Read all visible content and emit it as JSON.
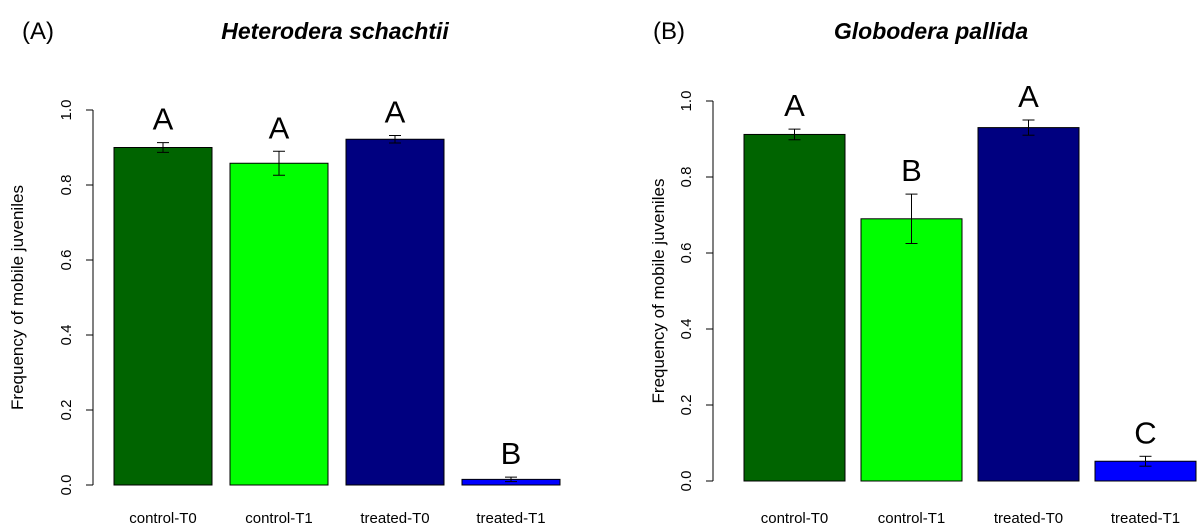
{
  "chart_data": [
    {
      "type": "bar",
      "panel_label": "(A)",
      "title": "Heterodera schachtii",
      "ylabel": "Frequency of mobile juveniles",
      "xlabel": "",
      "ylim": [
        0,
        1.0
      ],
      "yticks": [
        "0.0",
        "0.2",
        "0.4",
        "0.6",
        "0.8",
        "1.0"
      ],
      "grid": false,
      "categories": [
        "control-T0",
        "control-T1",
        "treated-T0",
        "treated-T1"
      ],
      "values": [
        0.9,
        0.858,
        0.922,
        0.015
      ],
      "errors": [
        0.013,
        0.032,
        0.01,
        0.006
      ],
      "colors": [
        "#006400",
        "#00ff00",
        "#000080",
        "#0000ff"
      ],
      "annotations": [
        "A",
        "A",
        "A",
        "B"
      ]
    },
    {
      "type": "bar",
      "panel_label": "(B)",
      "title": "Globodera pallida",
      "ylabel": "Frequency of mobile juveniles",
      "xlabel": "",
      "ylim": [
        0,
        1.0
      ],
      "yticks": [
        "0.0",
        "0.2",
        "0.4",
        "0.6",
        "0.8",
        "1.0"
      ],
      "grid": false,
      "categories": [
        "control-T0",
        "control-T1",
        "treated-T0",
        "treated-T1"
      ],
      "values": [
        0.912,
        0.69,
        0.93,
        0.052
      ],
      "errors": [
        0.014,
        0.065,
        0.02,
        0.013
      ],
      "colors": [
        "#006400",
        "#00ff00",
        "#000080",
        "#0000ff"
      ],
      "annotations": [
        "A",
        "B",
        "A",
        "C"
      ]
    }
  ]
}
